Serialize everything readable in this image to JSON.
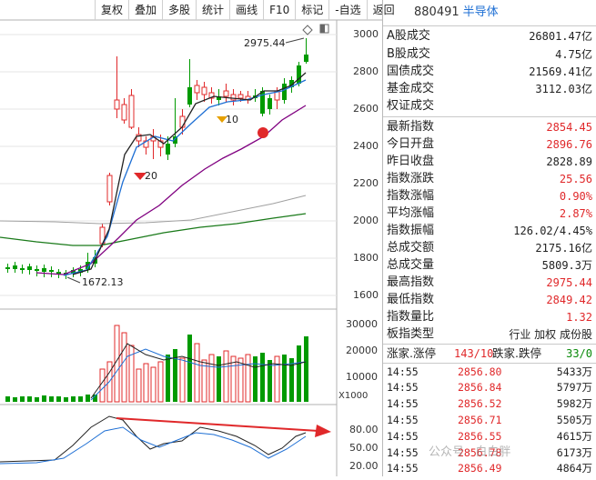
{
  "toolbar": {
    "items": [
      "复权",
      "叠加",
      "多股",
      "统计",
      "画线",
      "F10",
      "标记",
      "-自选",
      "返回"
    ]
  },
  "price_axis": [
    "3000",
    "2800",
    "2600",
    "2400",
    "2200",
    "2000",
    "1800",
    "1600"
  ],
  "volume_axis": [
    "30000",
    "20000",
    "10000"
  ],
  "volume_unit": "X1000",
  "macd_axis": [
    "80.00",
    "50.00",
    "20.00"
  ],
  "annotations": {
    "high": "2975.44",
    "low": "1672.13",
    "marker_a": "20",
    "marker_b": "10"
  },
  "colors": {
    "up": "#e0282a",
    "down": "#009a00",
    "accent": "#1e6fd4"
  },
  "header": {
    "code": "880491",
    "name": "半导体"
  },
  "stats": [
    {
      "label": "A股成交",
      "value": "26801.47亿",
      "color": "black"
    },
    {
      "label": "B股成交",
      "value": "4.75亿",
      "color": "black"
    },
    {
      "label": "国债成交",
      "value": "21569.41亿",
      "color": "black"
    },
    {
      "label": "基金成交",
      "value": "3112.03亿",
      "color": "black"
    },
    {
      "label": "权证成交",
      "value": "",
      "color": "black"
    },
    {
      "label": "最新指数",
      "value": "2854.45",
      "color": "red"
    },
    {
      "label": "今日开盘",
      "value": "2896.76",
      "color": "red"
    },
    {
      "label": "昨日收盘",
      "value": "2828.89",
      "color": "black"
    },
    {
      "label": "指数涨跌",
      "value": "25.56",
      "color": "red"
    },
    {
      "label": "指数涨幅",
      "value": "0.90%",
      "color": "red"
    },
    {
      "label": "平均涨幅",
      "value": "2.87%",
      "color": "red"
    },
    {
      "label": "指数振幅",
      "value": "126.02/4.45%",
      "color": "black"
    },
    {
      "label": "总成交额",
      "value": "2175.16亿",
      "color": "black"
    },
    {
      "label": "总成交量",
      "value": "5809.3万",
      "color": "black"
    },
    {
      "label": "最高指数",
      "value": "2975.44",
      "color": "red"
    },
    {
      "label": "最低指数",
      "value": "2849.42",
      "color": "red"
    },
    {
      "label": "指数量比",
      "value": "1.32",
      "color": "red"
    }
  ],
  "sector": {
    "label": "板指类型",
    "links": "行业 加权 成份股"
  },
  "breadth": {
    "up_label": "涨家.涨停",
    "up_value": "143/10",
    "down_label": "跌家.跌停",
    "down_value": "33/0"
  },
  "ticks": [
    {
      "time": "14:55",
      "price": "2856.80",
      "vol": "5433万"
    },
    {
      "time": "14:55",
      "price": "2856.84",
      "vol": "5797万"
    },
    {
      "time": "14:55",
      "price": "2856.52",
      "vol": "5982万"
    },
    {
      "time": "14:55",
      "price": "2856.71",
      "vol": "5505万"
    },
    {
      "time": "14:55",
      "price": "2856.55",
      "vol": "4615万"
    },
    {
      "time": "14:55",
      "price": "2856.78",
      "vol": "6173万"
    },
    {
      "time": "14:55",
      "price": "2856.49",
      "vol": "4864万"
    }
  ],
  "watermark": "公众号 · 白白胖"
}
